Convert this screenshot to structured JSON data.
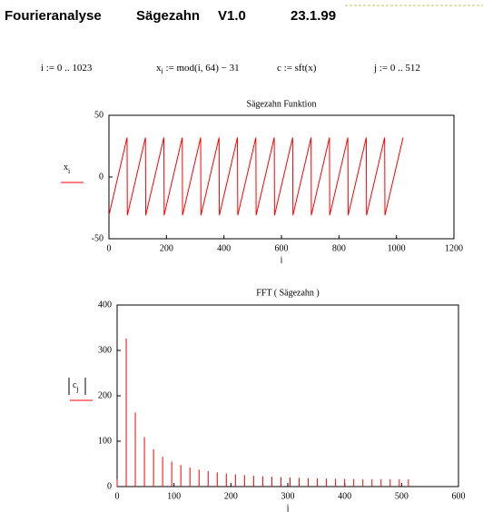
{
  "header": {
    "parts": [
      "Fourieranalyse",
      "Sägezahn",
      "V1.0",
      "23.1.99"
    ]
  },
  "formulas": [
    {
      "text": "i := 0 .. 1023"
    },
    {
      "text": "x",
      "sub": "i",
      "rest": " := mod(i, 64) − 31"
    },
    {
      "text": "c := sft(x)"
    },
    {
      "text": "j := 0 .. 512"
    }
  ],
  "chart_data": [
    {
      "type": "line",
      "title": "Sägezahn Funktion",
      "xlabel": "i",
      "ylabel": "x",
      "ylabel_sub": "i",
      "color": "#ff0000",
      "x": [
        0,
        63,
        64,
        127,
        128,
        191,
        192,
        255,
        256,
        319,
        320,
        383,
        384,
        447,
        448,
        511,
        512,
        575,
        576,
        639,
        640,
        703,
        704,
        767,
        768,
        831,
        832,
        895,
        896,
        959,
        960,
        1023
      ],
      "values": [
        -31,
        32,
        -31,
        32,
        -31,
        32,
        -31,
        32,
        -31,
        32,
        -31,
        32,
        -31,
        32,
        -31,
        32,
        -31,
        32,
        -31,
        32,
        -31,
        32,
        -31,
        32,
        -31,
        32,
        -31,
        32,
        -31,
        32,
        -31,
        32
      ],
      "xlim": [
        0,
        1200
      ],
      "xticks": [
        0,
        200,
        400,
        600,
        800,
        1000,
        1200
      ],
      "ylim": [
        -50,
        50
      ],
      "yticks": [
        -50,
        0,
        50
      ]
    },
    {
      "type": "stem",
      "title": "FFT ( Sägezahn )",
      "xlabel": "j",
      "ylabel": "c",
      "ylabel_sub": "j",
      "abs": true,
      "color": "#ff0000",
      "x": [
        0,
        16,
        32,
        48,
        64,
        80,
        96,
        112,
        128,
        144,
        160,
        176,
        192,
        208,
        224,
        240,
        256,
        272,
        288,
        304,
        320,
        336,
        352,
        368,
        384,
        400,
        416,
        432,
        448,
        464,
        480,
        496,
        512
      ],
      "values": [
        16,
        326.1,
        163.2,
        109.0,
        82.0,
        65.8,
        55.1,
        47.5,
        41.8,
        37.4,
        33.9,
        31.1,
        28.8,
        26.9,
        25.2,
        23.8,
        22.6,
        21.6,
        20.7,
        19.9,
        19.2,
        18.7,
        18.1,
        17.7,
        17.3,
        17.0,
        16.7,
        16.5,
        16.3,
        16.2,
        16.1,
        16.0,
        16.0
      ],
      "xlim": [
        0,
        600
      ],
      "xticks": [
        0,
        100,
        200,
        300,
        400,
        500,
        600
      ],
      "ylim": [
        0,
        400
      ],
      "yticks": [
        0,
        100,
        200,
        300,
        400
      ]
    }
  ]
}
